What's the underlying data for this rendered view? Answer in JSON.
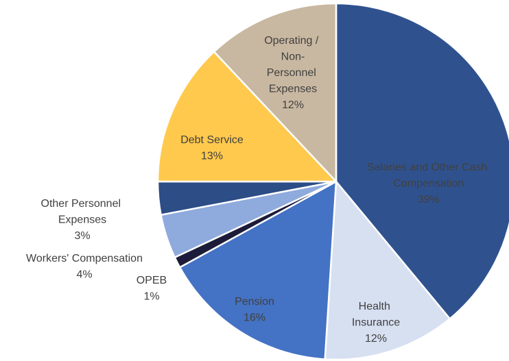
{
  "chart_data": {
    "type": "pie",
    "categories": [
      "Salaries and Other Cash Compensation",
      "Health Insurance",
      "Pension",
      "OPEB",
      "Workers' Compensation",
      "Other Personnel Expenses",
      "Debt Service",
      "Operating / Non-Personnel Expenses"
    ],
    "values": [
      39,
      12,
      16,
      1,
      4,
      3,
      13,
      12
    ],
    "value_labels": [
      "39%",
      "12%",
      "16%",
      "1%",
      "4%",
      "3%",
      "13%",
      "12%"
    ],
    "colors": [
      "#2f528f",
      "#d7e0f1",
      "#4472c4",
      "#1c1c3a",
      "#8faadc",
      "#2c4d86",
      "#ffc94d",
      "#c9b8a1"
    ],
    "label_colors": [
      "#ffffff",
      "#404040",
      "#ffffff",
      "#404040",
      "#404040",
      "#404040",
      "#404040",
      "#404040"
    ]
  }
}
